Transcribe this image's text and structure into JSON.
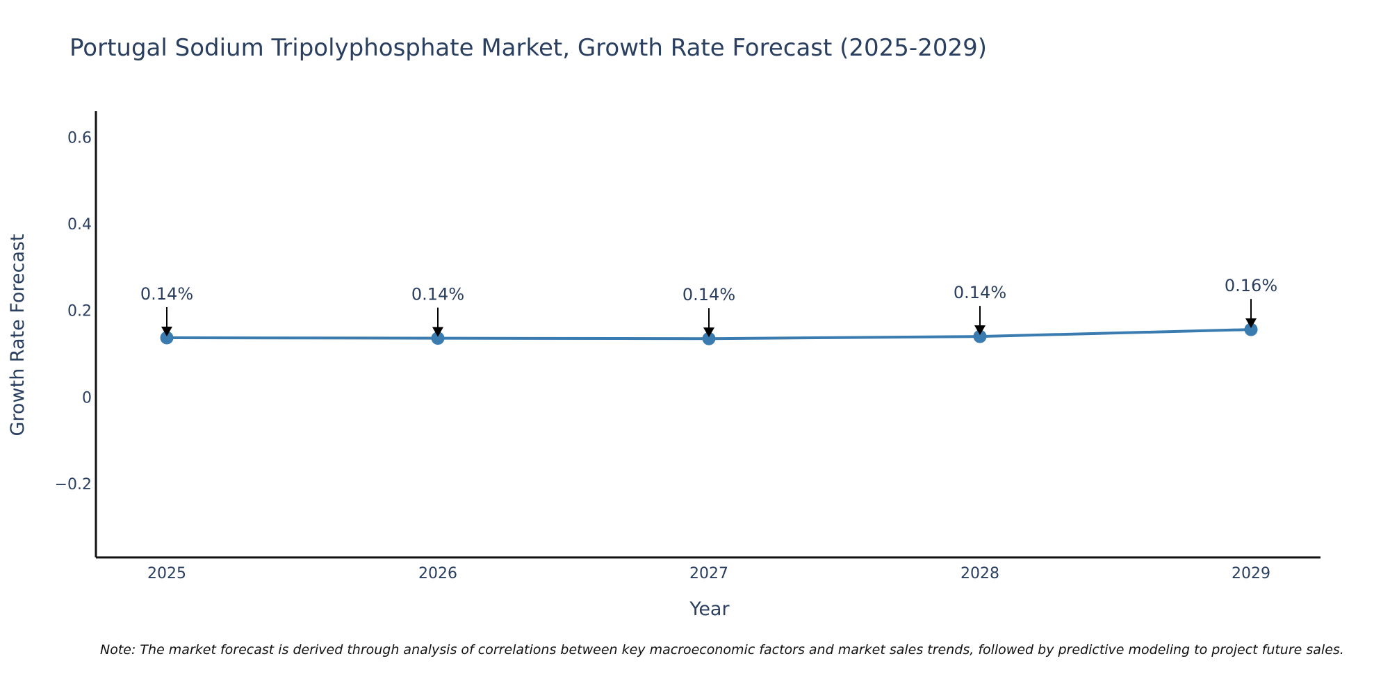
{
  "chart_data": {
    "type": "line",
    "title": "Portugal Sodium Tripolyphosphate Market, Growth Rate Forecast (2025-2029)",
    "xlabel": "Year",
    "ylabel": "Growth Rate Forecast",
    "categories": [
      "2025",
      "2026",
      "2027",
      "2028",
      "2029"
    ],
    "series": [
      {
        "name": "Growth Rate Forecast",
        "values": [
          0.137,
          0.136,
          0.135,
          0.14,
          0.156
        ]
      }
    ],
    "data_labels": [
      "0.14%",
      "0.14%",
      "0.14%",
      "0.14%",
      "0.16%"
    ],
    "ylim": [
      -0.37,
      0.66
    ],
    "yticks": [
      -0.2,
      0,
      0.2,
      0.4,
      0.6
    ],
    "ytick_labels": [
      "−0.2",
      "0",
      "0.2",
      "0.4",
      "0.6"
    ],
    "grid": false,
    "line_color": "#3a7bb0",
    "marker_color": "#3a7bb0",
    "note": "Note: The market forecast is derived through analysis of correlations between key macroeconomic factors and market sales trends, followed by predictive modeling to project future sales."
  }
}
